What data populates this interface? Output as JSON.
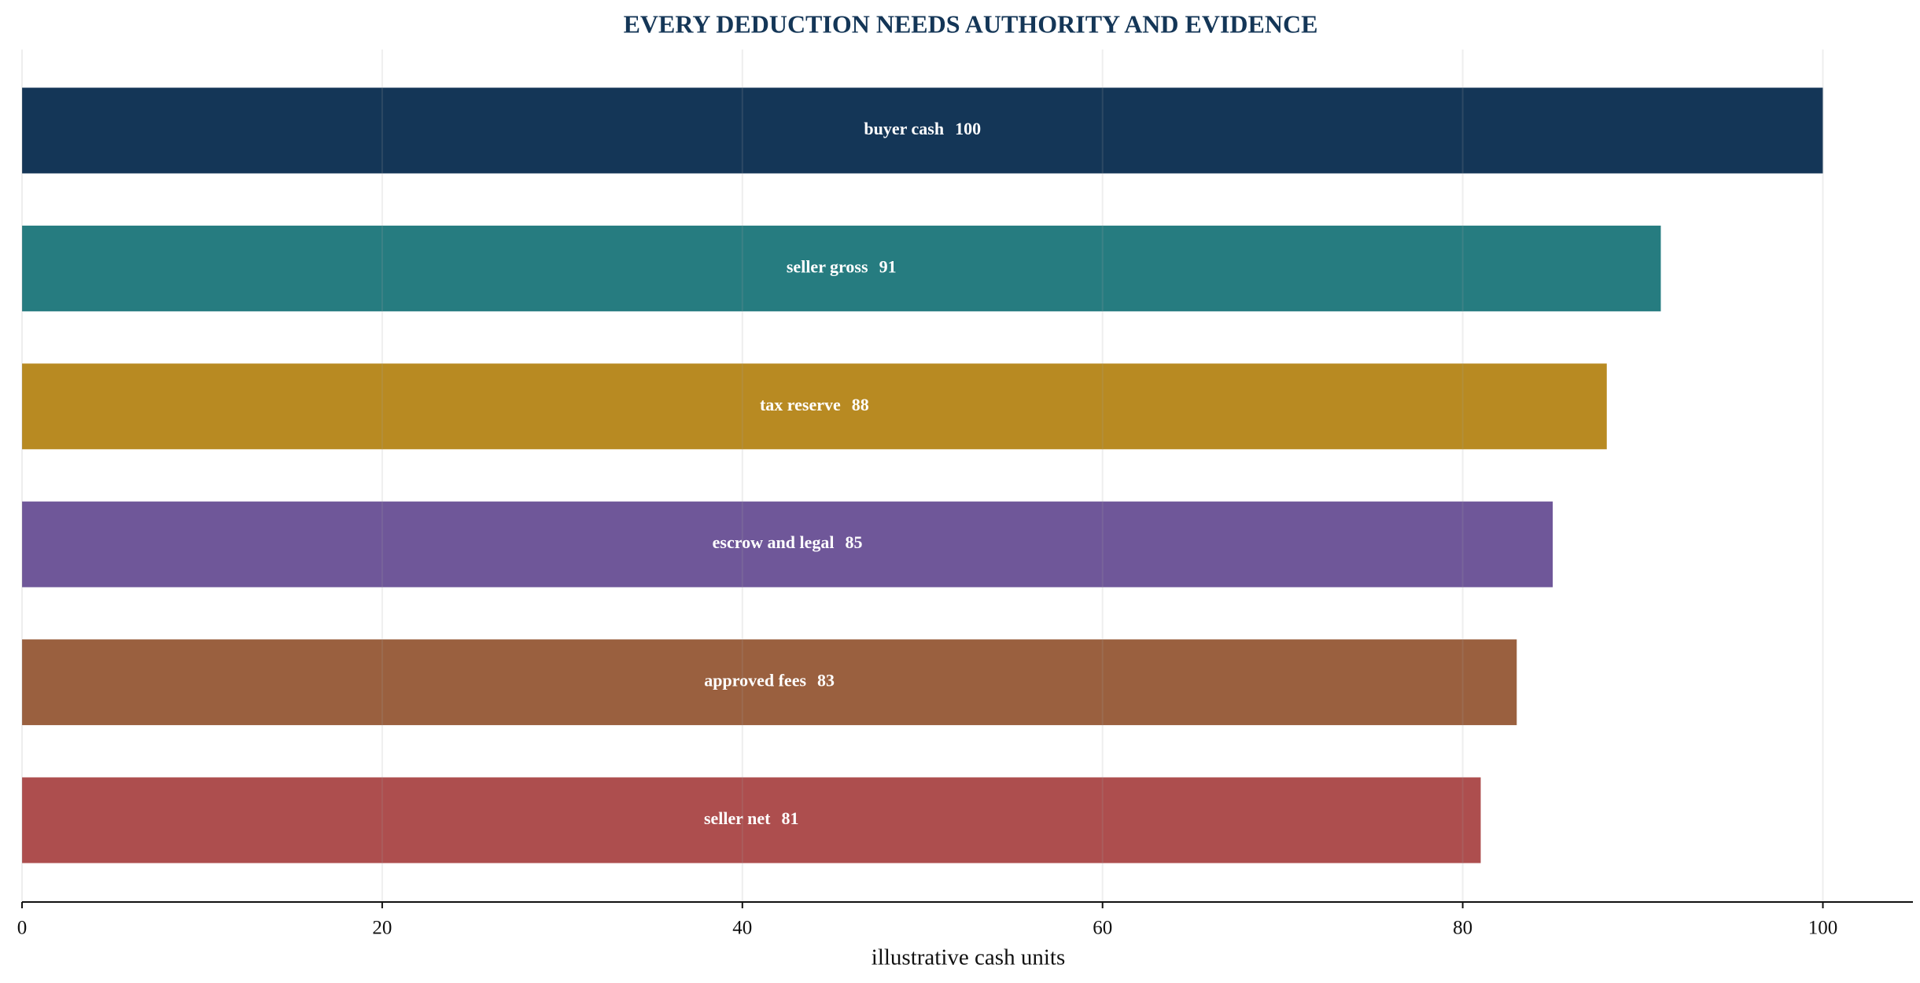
{
  "chart_data": {
    "type": "bar",
    "orientation": "horizontal",
    "title": "EVERY DEDUCTION NEEDS AUTHORITY AND EVIDENCE",
    "xlabel": "illustrative cash units",
    "categories": [
      "buyer cash",
      "seller gross",
      "tax reserve",
      "escrow and legal",
      "approved fees",
      "seller net"
    ],
    "values": [
      100,
      91,
      88,
      85,
      83,
      81
    ],
    "colors": [
      "#143657",
      "#267c80",
      "#b88a22",
      "#6f5799",
      "#9a603f",
      "#ad4e4e"
    ],
    "xlim": [
      0,
      105
    ],
    "xticks": [
      0,
      20,
      40,
      60,
      80,
      100
    ],
    "grid": true
  }
}
